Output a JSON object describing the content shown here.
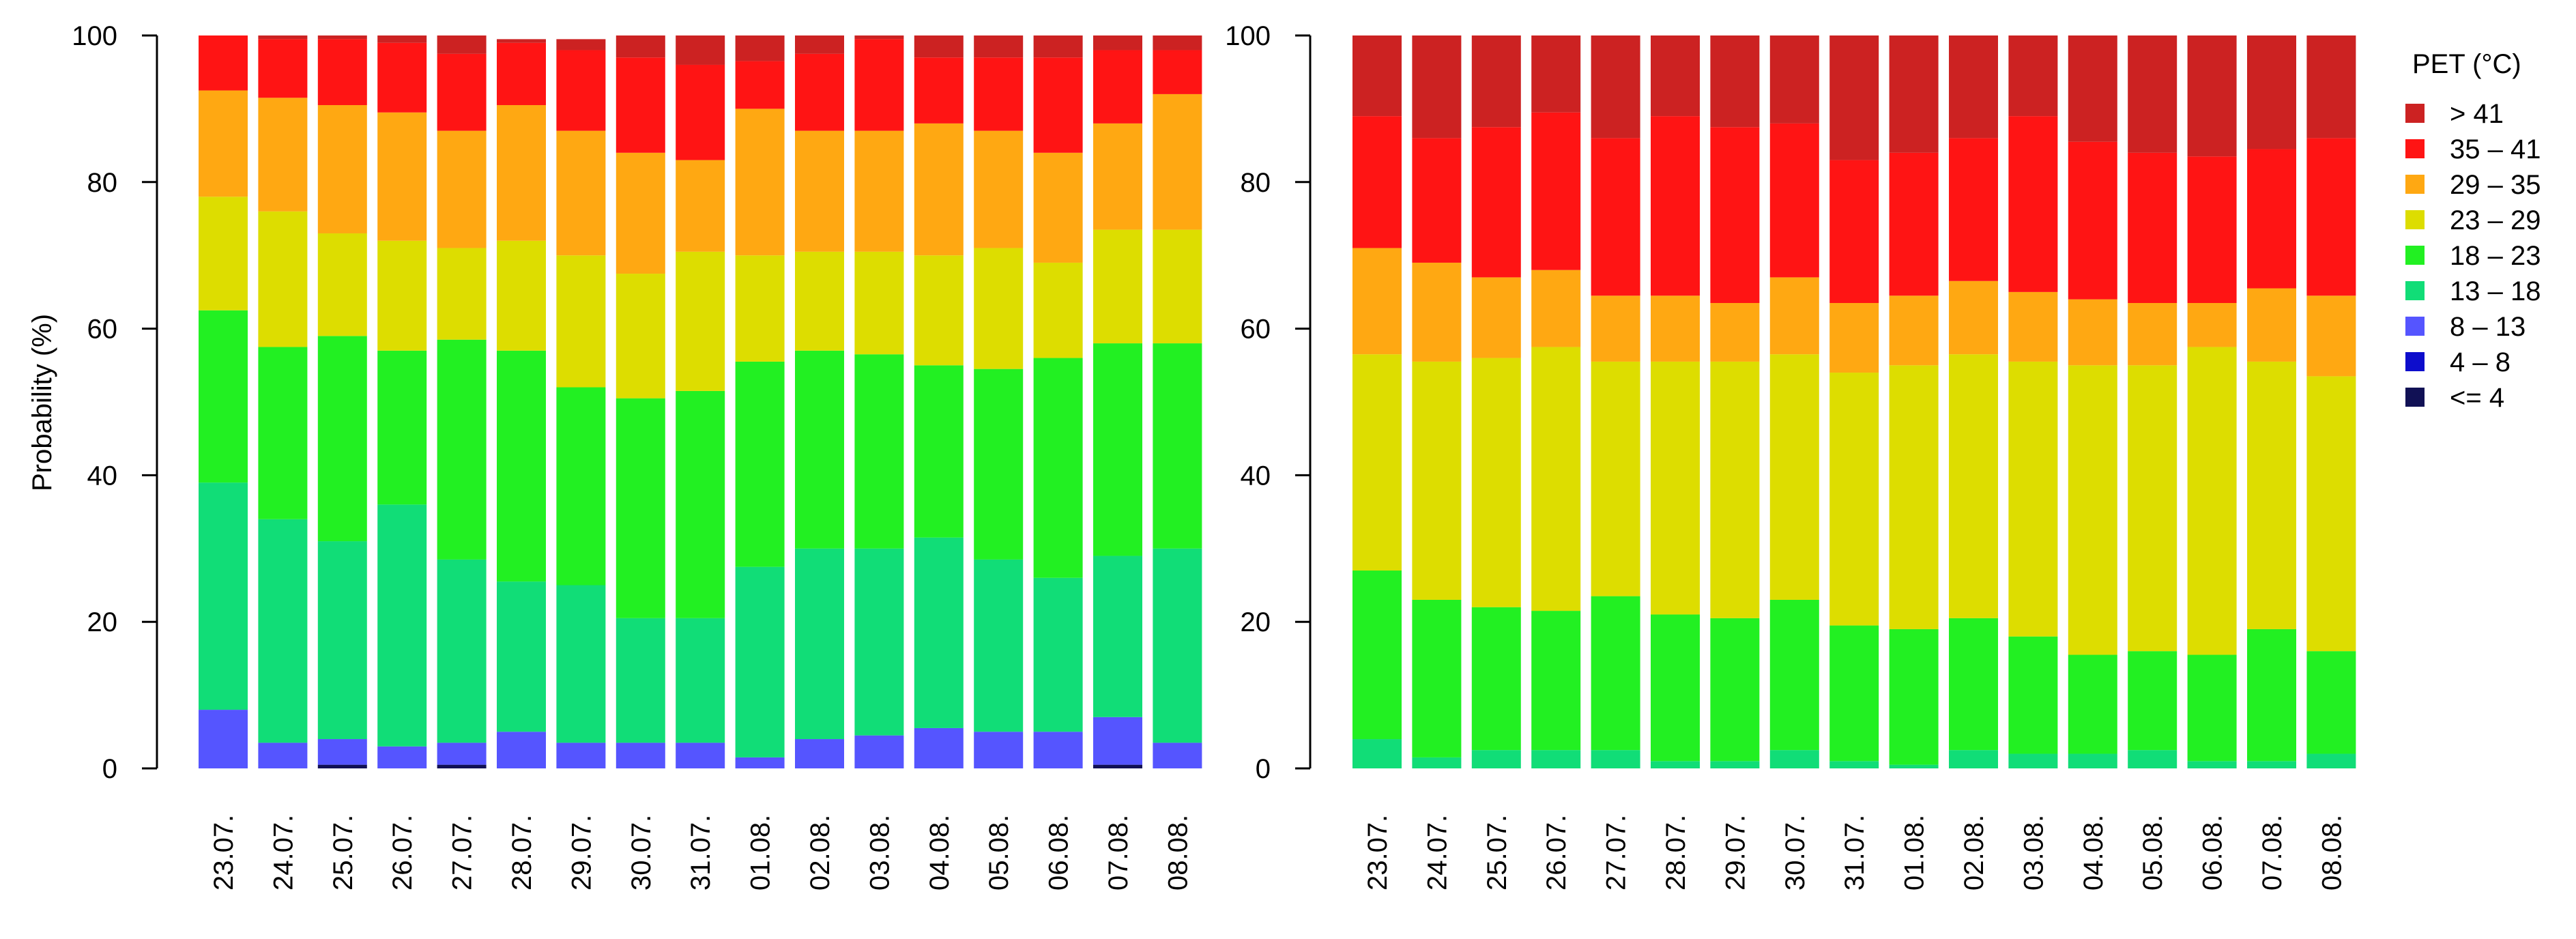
{
  "chart_data": [
    {
      "type": "bar",
      "stacked": true,
      "panel": "left",
      "ylabel": "Probability (%)",
      "ylim": [
        0,
        100
      ],
      "yticks": [
        0,
        20,
        40,
        60,
        80,
        100
      ],
      "categories": [
        "23.07.",
        "24.07.",
        "25.07.",
        "26.07.",
        "27.07.",
        "28.07.",
        "29.07.",
        "30.07.",
        "31.07.",
        "01.08.",
        "02.08.",
        "03.08.",
        "04.08.",
        "05.08.",
        "06.08.",
        "07.08.",
        "08.08."
      ],
      "series": [
        {
          "name": "<= 4",
          "values": [
            0,
            0,
            0.5,
            0,
            0.5,
            0,
            0,
            0,
            0,
            0,
            0,
            0,
            0,
            0,
            0,
            0.5,
            0
          ]
        },
        {
          "name": "4 – 8",
          "values": [
            0,
            0,
            0,
            0,
            0,
            0,
            0,
            0,
            0,
            0,
            0,
            0,
            0,
            0,
            0,
            0,
            0
          ]
        },
        {
          "name": "8 – 13",
          "values": [
            8,
            3.5,
            3.5,
            3,
            3,
            5,
            3.5,
            3.5,
            3.5,
            1.5,
            4,
            4.5,
            5.5,
            5,
            5,
            6.5,
            3.5
          ]
        },
        {
          "name": "13 – 18",
          "values": [
            31,
            30.5,
            27,
            33,
            25,
            20.5,
            21.5,
            17,
            17,
            26,
            26,
            25.5,
            26,
            23.5,
            21,
            22,
            26.5
          ]
        },
        {
          "name": "18 – 23",
          "values": [
            23.5,
            23.5,
            28,
            21,
            30,
            31.5,
            27,
            30,
            31,
            28,
            27,
            26.5,
            23.5,
            26,
            30,
            29,
            28
          ]
        },
        {
          "name": "23 – 29",
          "values": [
            15.5,
            18.5,
            14,
            15,
            12.5,
            15,
            18,
            17,
            19,
            14.5,
            13.5,
            14,
            15,
            16.5,
            13,
            15.5,
            15.5
          ]
        },
        {
          "name": "29 – 35",
          "values": [
            14.5,
            15.5,
            17.5,
            17.5,
            16,
            18.5,
            17,
            16.5,
            12.5,
            20,
            16.5,
            16.5,
            18,
            16,
            15,
            14.5,
            18.5
          ]
        },
        {
          "name": "35 – 41",
          "values": [
            7.5,
            8,
            9,
            9.5,
            10.5,
            8.5,
            11,
            13,
            13,
            6.5,
            10.5,
            12.5,
            9,
            10,
            13,
            10,
            6
          ]
        },
        {
          "name": "> 41",
          "values": [
            0,
            0.5,
            0.5,
            1,
            2.5,
            0.5,
            1.5,
            3,
            4,
            3.5,
            2.5,
            0.5,
            3,
            3,
            3,
            2,
            2
          ]
        }
      ]
    },
    {
      "type": "bar",
      "stacked": true,
      "panel": "right",
      "ylim": [
        0,
        100
      ],
      "yticks": [
        0,
        20,
        40,
        60,
        80,
        100
      ],
      "categories": [
        "23.07.",
        "24.07.",
        "25.07.",
        "26.07.",
        "27.07.",
        "28.07.",
        "29.07.",
        "30.07.",
        "31.07.",
        "01.08.",
        "02.08.",
        "03.08.",
        "04.08.",
        "05.08.",
        "06.08.",
        "07.08.",
        "08.08."
      ],
      "series": [
        {
          "name": "<= 4",
          "values": [
            0,
            0,
            0,
            0,
            0,
            0,
            0,
            0,
            0,
            0,
            0,
            0,
            0,
            0,
            0,
            0,
            0
          ]
        },
        {
          "name": "4 – 8",
          "values": [
            0,
            0,
            0,
            0,
            0,
            0,
            0,
            0,
            0,
            0,
            0,
            0,
            0,
            0,
            0,
            0,
            0
          ]
        },
        {
          "name": "8 – 13",
          "values": [
            0,
            0,
            0,
            0,
            0,
            0,
            0,
            0,
            0,
            0,
            0,
            0,
            0,
            0,
            0,
            0,
            0
          ]
        },
        {
          "name": "13 – 18",
          "values": [
            4,
            1.5,
            2.5,
            2.5,
            2.5,
            1,
            1,
            2.5,
            1,
            0.5,
            2.5,
            2,
            2,
            2.5,
            1,
            1,
            2
          ]
        },
        {
          "name": "18 – 23",
          "values": [
            23,
            21.5,
            19.5,
            19,
            21,
            20,
            19.5,
            20.5,
            18.5,
            18.5,
            18,
            16,
            13.5,
            13.5,
            14.5,
            18,
            14
          ]
        },
        {
          "name": "23 – 29",
          "values": [
            29.5,
            32.5,
            34,
            36,
            32,
            34.5,
            35,
            33.5,
            34.5,
            36,
            36,
            37.5,
            39.5,
            39,
            42,
            36.5,
            37.5
          ]
        },
        {
          "name": "29 – 35",
          "values": [
            14.5,
            13.5,
            11,
            10.5,
            9,
            9,
            8,
            10.5,
            9.5,
            9.5,
            10,
            9.5,
            9,
            8.5,
            6,
            10,
            11
          ]
        },
        {
          "name": "35 – 41",
          "values": [
            18,
            17,
            20.5,
            21.5,
            21.5,
            24.5,
            24,
            21,
            19.5,
            19.5,
            19.5,
            24,
            21.5,
            20.5,
            20,
            19,
            21.5
          ]
        },
        {
          "name": "> 41",
          "values": [
            11,
            14,
            12.5,
            10.5,
            14,
            11,
            12.5,
            12,
            17,
            16,
            14,
            11,
            14.5,
            16,
            16.5,
            15.5,
            14
          ]
        }
      ]
    }
  ],
  "legend": {
    "title": "PET (°C)",
    "entries": [
      {
        "label": "> 41",
        "color": "#CC2222"
      },
      {
        "label": "35 – 41",
        "color": "#FF1414"
      },
      {
        "label": "29 – 35",
        "color": "#FFA812"
      },
      {
        "label": "23 – 29",
        "color": "#DDDD00"
      },
      {
        "label": "18 – 23",
        "color": "#22F022"
      },
      {
        "label": "13 – 18",
        "color": "#11DD77"
      },
      {
        "label": "8 – 13",
        "color": "#5555FF"
      },
      {
        "label": "4 – 8",
        "color": "#0D0DCC"
      },
      {
        "label": "<= 4",
        "color": "#111155"
      }
    ]
  },
  "colors": {
    "<= 4": "#111155",
    "4 – 8": "#0D0DCC",
    "8 – 13": "#5555FF",
    "13 – 18": "#11DD77",
    "18 – 23": "#22F022",
    "23 – 29": "#DDDD00",
    "29 – 35": "#FFA812",
    "35 – 41": "#FF1414",
    "> 41": "#CC2222"
  }
}
